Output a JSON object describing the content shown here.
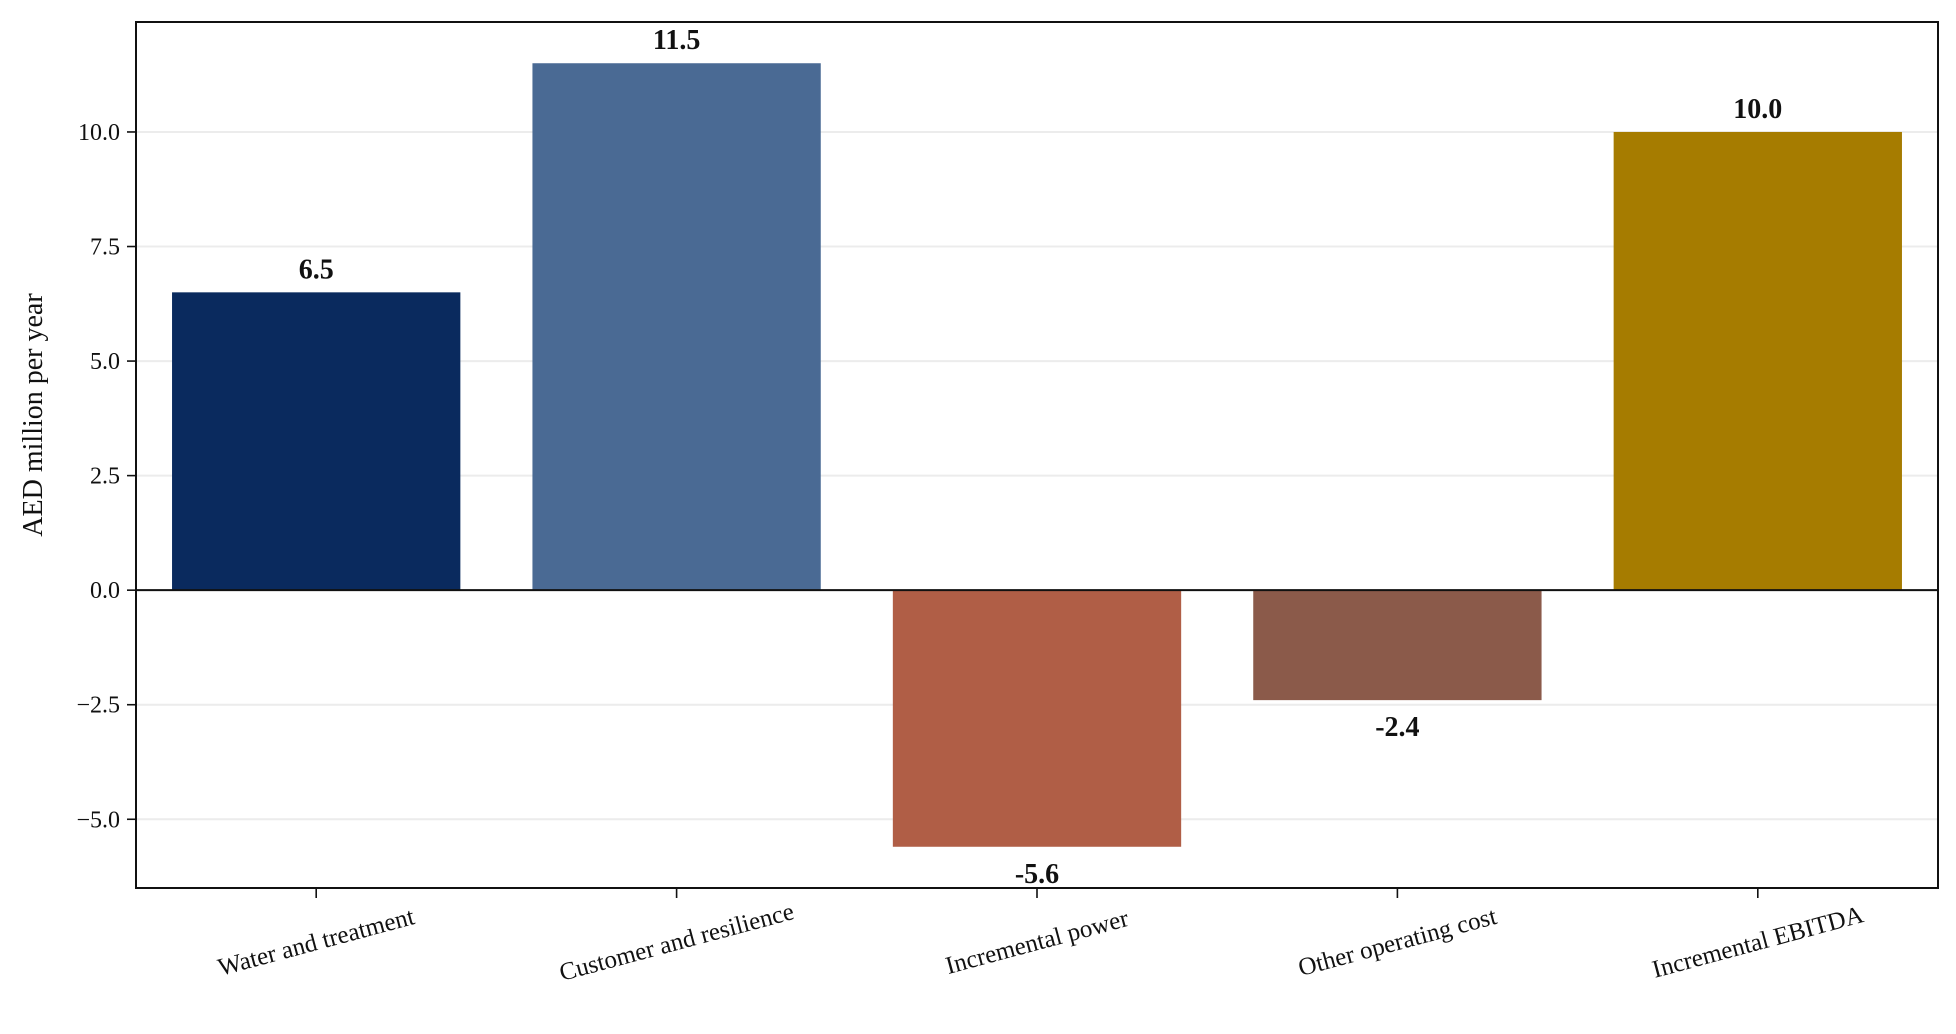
{
  "chart_data": {
    "type": "bar",
    "title": "",
    "xlabel": "",
    "ylabel": "AED million per year",
    "categories": [
      "Water and treatment",
      "Customer and resilience",
      "Incremental power",
      "Other operating cost",
      "Incremental EBITDA"
    ],
    "values": [
      6.5,
      11.5,
      -5.6,
      -2.4,
      10.0
    ],
    "value_labels": [
      "6.5",
      "11.5",
      "-5.6",
      "-2.4",
      "10.0"
    ],
    "colors": [
      "#0a2a5e",
      "#4a6a94",
      "#b05e46",
      "#8b5a4a",
      "#a67c00"
    ],
    "ylim": [
      -6.5,
      12.4
    ],
    "yticks": [
      -5.0,
      -2.5,
      0.0,
      2.5,
      5.0,
      7.5,
      10.0
    ],
    "ytick_labels": [
      "−5.0",
      "−2.5",
      "0.0",
      "2.5",
      "5.0",
      "7.5",
      "10.0"
    ],
    "grid": "horizontal",
    "legend": "none"
  }
}
